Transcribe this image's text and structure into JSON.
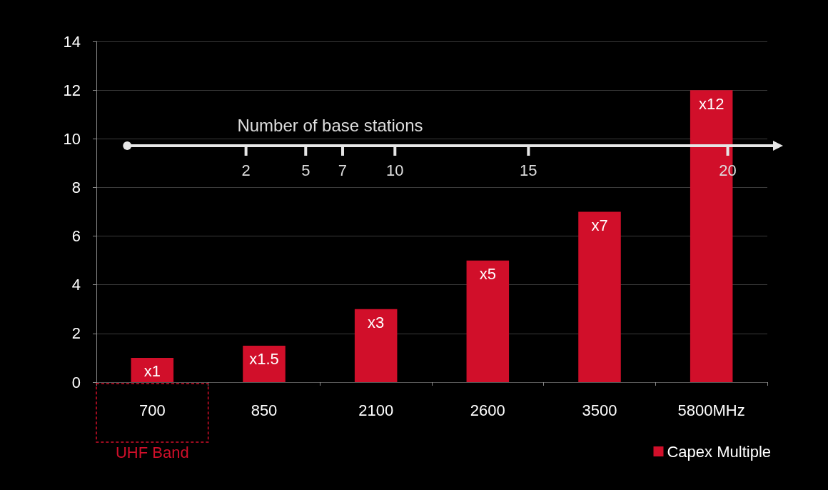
{
  "chart_data": {
    "type": "bar",
    "categories": [
      "700",
      "850",
      "2100",
      "2600",
      "3500",
      "5800MHz"
    ],
    "series": [
      {
        "name": "Capex Multiple",
        "color": "#d10f2a",
        "values": [
          1,
          1.5,
          3,
          5,
          7,
          12
        ],
        "value_labels": [
          "x1",
          "x1.5",
          "x3",
          "x5",
          "x7",
          "x12"
        ]
      }
    ],
    "ylim": [
      0,
      14
    ],
    "yticks": [
      0,
      2,
      4,
      6,
      8,
      10,
      12,
      14
    ],
    "grid": "y",
    "legend": "bottom right",
    "annotations": [
      "Number of base stations",
      "2",
      "5",
      "7",
      "10",
      "15",
      "20",
      "UHF Band"
    ]
  }
}
